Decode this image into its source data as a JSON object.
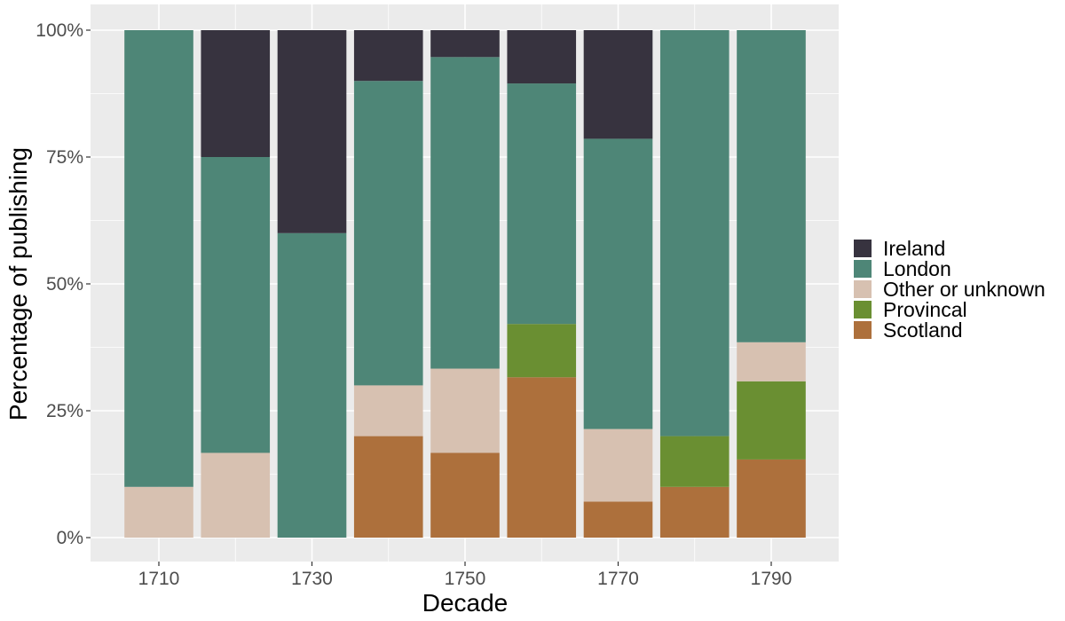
{
  "chart_data": {
    "type": "bar",
    "stacked": true,
    "normalized": true,
    "title": "",
    "xlabel": "Decade",
    "ylabel": "Percentage of publishing",
    "ylim": [
      0,
      1
    ],
    "y_ticks": [
      "0%",
      "25%",
      "50%",
      "75%",
      "100%"
    ],
    "x_tick_labels": [
      "1710",
      "1730",
      "1750",
      "1770",
      "1790"
    ],
    "categories": [
      "1710",
      "1720",
      "1730",
      "1740",
      "1750",
      "1760",
      "1770",
      "1780",
      "1790"
    ],
    "grid": true,
    "legend_position": "right",
    "legend_title": "",
    "stack_order_bottom_to_top": [
      "Scotland",
      "Provincal",
      "Other or unknown",
      "London",
      "Ireland"
    ],
    "series": [
      {
        "name": "Ireland",
        "color": "#37333F",
        "values": [
          0.0,
          0.25,
          0.4,
          0.1,
          0.053,
          0.105,
          0.214,
          0.0,
          0.0
        ]
      },
      {
        "name": "London",
        "color": "#4E8677",
        "values": [
          0.9,
          0.583,
          0.6,
          0.6,
          0.614,
          0.474,
          0.572,
          0.8,
          0.615
        ]
      },
      {
        "name": "Other or unknown",
        "color": "#D7C1B1",
        "values": [
          0.1,
          0.167,
          0.0,
          0.1,
          0.166,
          0.0,
          0.143,
          0.0,
          0.077
        ]
      },
      {
        "name": "Provincal",
        "color": "#6A8F32",
        "values": [
          0.0,
          0.0,
          0.0,
          0.0,
          0.0,
          0.105,
          0.0,
          0.1,
          0.154
        ]
      },
      {
        "name": "Scotland",
        "color": "#AD703C",
        "values": [
          0.0,
          0.0,
          0.0,
          0.2,
          0.167,
          0.316,
          0.071,
          0.1,
          0.154
        ]
      }
    ],
    "panel_background": "#EBEBEB",
    "grid_color": "#FFFFFF"
  }
}
